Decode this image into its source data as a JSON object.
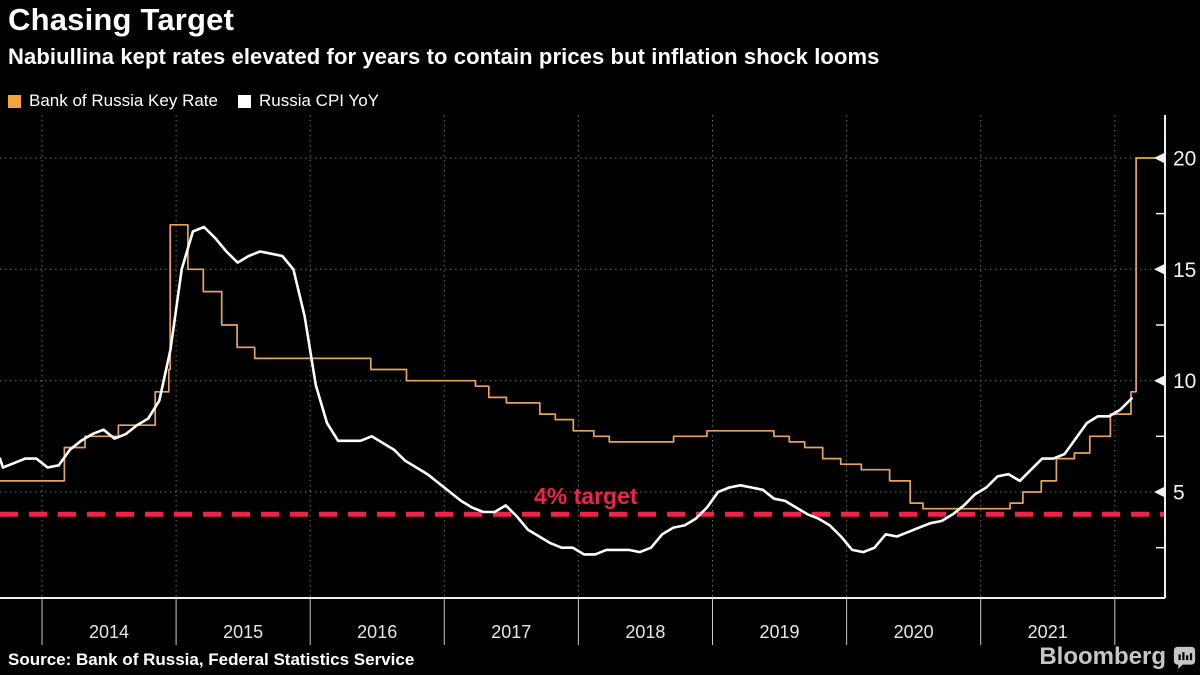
{
  "header": {
    "title": "Chasing Target",
    "subtitle": "Nabiullina kept rates elevated for years to contain prices but inflation shock looms"
  },
  "legend": [
    {
      "label": "Bank of Russia Key Rate",
      "color": "#f3a43e"
    },
    {
      "label": "Russia CPI YoY",
      "color": "#ffffff"
    }
  ],
  "footer": {
    "source": "Source: Bank of Russia, Federal Statistics Service",
    "brand": "Bloomberg"
  },
  "chart_data": {
    "type": "line",
    "title": "Chasing Target",
    "xlabel": "",
    "ylabel": "",
    "grid": "dotted",
    "legend_position": "top-left",
    "xlim": [
      2013.6868,
      2022.3744
    ],
    "ylim": [
      0.24,
      21.93
    ],
    "x_boundaries": [
      2014,
      2015,
      2016,
      2017,
      2018,
      2019,
      2020,
      2021,
      2022
    ],
    "x_tick_labels": [
      "2014",
      "2015",
      "2016",
      "2017",
      "2018",
      "2019",
      "2020",
      "2021"
    ],
    "y_ticks_major": [
      5,
      10,
      15,
      20
    ],
    "y_ticks_minor": [
      2.5,
      7.5,
      12.5,
      17.5
    ],
    "target_line": {
      "value": 4,
      "label": "4% target",
      "color": "#ed2449"
    },
    "series": [
      {
        "name": "Bank of Russia Key Rate",
        "type": "step",
        "color": "#e9a45b",
        "width": 1.7,
        "extend_to_right": true,
        "points": [
          [
            "2013-08",
            5.5
          ],
          [
            "2014-03-03",
            7.0
          ],
          [
            "2014-04-28",
            7.5
          ],
          [
            "2014-07-28",
            8.0
          ],
          [
            "2014-11-05",
            9.5
          ],
          [
            "2014-12-12",
            10.5
          ],
          [
            "2014-12-16",
            17.0
          ],
          [
            "2015-02-02",
            15.0
          ],
          [
            "2015-03-16",
            14.0
          ],
          [
            "2015-05-05",
            12.5
          ],
          [
            "2015-06-16",
            11.5
          ],
          [
            "2015-08-03",
            11.0
          ],
          [
            "2016-06-14",
            10.5
          ],
          [
            "2016-09-19",
            10.0
          ],
          [
            "2017-03-27",
            9.75
          ],
          [
            "2017-05-02",
            9.25
          ],
          [
            "2017-06-19",
            9.0
          ],
          [
            "2017-09-18",
            8.5
          ],
          [
            "2017-10-30",
            8.25
          ],
          [
            "2017-12-18",
            7.75
          ],
          [
            "2018-02-12",
            7.5
          ],
          [
            "2018-03-26",
            7.25
          ],
          [
            "2018-09-17",
            7.5
          ],
          [
            "2018-12-17",
            7.75
          ],
          [
            "2019-06-17",
            7.5
          ],
          [
            "2019-07-29",
            7.25
          ],
          [
            "2019-09-09",
            7.0
          ],
          [
            "2019-10-28",
            6.5
          ],
          [
            "2019-12-16",
            6.25
          ],
          [
            "2020-02-10",
            6.0
          ],
          [
            "2020-04-27",
            5.5
          ],
          [
            "2020-06-22",
            4.5
          ],
          [
            "2020-07-27",
            4.25
          ],
          [
            "2021-03-22",
            4.5
          ],
          [
            "2021-04-26",
            5.0
          ],
          [
            "2021-06-15",
            5.5
          ],
          [
            "2021-07-26",
            6.5
          ],
          [
            "2021-09-13",
            6.75
          ],
          [
            "2021-10-25",
            7.5
          ],
          [
            "2021-12-20",
            8.5
          ],
          [
            "2022-02-14",
            9.5
          ],
          [
            "2022-02-28",
            20.0
          ]
        ]
      },
      {
        "name": "Russia CPI YoY",
        "type": "line",
        "color": "#ffffff",
        "width": 2.6,
        "extend_to_right": false,
        "points": [
          [
            "2013-08",
            6.5
          ],
          [
            "2013-09",
            6.1
          ],
          [
            "2013-10",
            6.3
          ],
          [
            "2013-11",
            6.5
          ],
          [
            "2013-12",
            6.5
          ],
          [
            "2014-01",
            6.1
          ],
          [
            "2014-02",
            6.2
          ],
          [
            "2014-03",
            6.9
          ],
          [
            "2014-04",
            7.3
          ],
          [
            "2014-05",
            7.6
          ],
          [
            "2014-06",
            7.8
          ],
          [
            "2014-07",
            7.4
          ],
          [
            "2014-08",
            7.6
          ],
          [
            "2014-09",
            8.0
          ],
          [
            "2014-10",
            8.3
          ],
          [
            "2014-11",
            9.1
          ],
          [
            "2014-12",
            11.4
          ],
          [
            "2015-01",
            15.0
          ],
          [
            "2015-02",
            16.7
          ],
          [
            "2015-03",
            16.9
          ],
          [
            "2015-04",
            16.4
          ],
          [
            "2015-05",
            15.8
          ],
          [
            "2015-06",
            15.3
          ],
          [
            "2015-07",
            15.6
          ],
          [
            "2015-08",
            15.8
          ],
          [
            "2015-09",
            15.7
          ],
          [
            "2015-10",
            15.6
          ],
          [
            "2015-11",
            15.0
          ],
          [
            "2015-12",
            12.9
          ],
          [
            "2016-01",
            9.8
          ],
          [
            "2016-02",
            8.1
          ],
          [
            "2016-03",
            7.3
          ],
          [
            "2016-04",
            7.3
          ],
          [
            "2016-05",
            7.3
          ],
          [
            "2016-06",
            7.5
          ],
          [
            "2016-07",
            7.2
          ],
          [
            "2016-08",
            6.9
          ],
          [
            "2016-09",
            6.4
          ],
          [
            "2016-10",
            6.1
          ],
          [
            "2016-11",
            5.8
          ],
          [
            "2016-12",
            5.4
          ],
          [
            "2017-01",
            5.0
          ],
          [
            "2017-02",
            4.6
          ],
          [
            "2017-03",
            4.3
          ],
          [
            "2017-04",
            4.1
          ],
          [
            "2017-05",
            4.1
          ],
          [
            "2017-06",
            4.4
          ],
          [
            "2017-07",
            3.9
          ],
          [
            "2017-08",
            3.3
          ],
          [
            "2017-09",
            3.0
          ],
          [
            "2017-10",
            2.7
          ],
          [
            "2017-11",
            2.5
          ],
          [
            "2017-12",
            2.5
          ],
          [
            "2018-01",
            2.2
          ],
          [
            "2018-02",
            2.2
          ],
          [
            "2018-03",
            2.4
          ],
          [
            "2018-04",
            2.4
          ],
          [
            "2018-05",
            2.4
          ],
          [
            "2018-06",
            2.3
          ],
          [
            "2018-07",
            2.5
          ],
          [
            "2018-08",
            3.1
          ],
          [
            "2018-09",
            3.4
          ],
          [
            "2018-10",
            3.5
          ],
          [
            "2018-11",
            3.8
          ],
          [
            "2018-12",
            4.3
          ],
          [
            "2019-01",
            5.0
          ],
          [
            "2019-02",
            5.2
          ],
          [
            "2019-03",
            5.3
          ],
          [
            "2019-04",
            5.2
          ],
          [
            "2019-05",
            5.1
          ],
          [
            "2019-06",
            4.7
          ],
          [
            "2019-07",
            4.6
          ],
          [
            "2019-08",
            4.3
          ],
          [
            "2019-09",
            4.0
          ],
          [
            "2019-10",
            3.8
          ],
          [
            "2019-11",
            3.5
          ],
          [
            "2019-12",
            3.0
          ],
          [
            "2020-01",
            2.4
          ],
          [
            "2020-02",
            2.3
          ],
          [
            "2020-03",
            2.5
          ],
          [
            "2020-04",
            3.1
          ],
          [
            "2020-05",
            3.0
          ],
          [
            "2020-06",
            3.2
          ],
          [
            "2020-07",
            3.4
          ],
          [
            "2020-08",
            3.6
          ],
          [
            "2020-09",
            3.7
          ],
          [
            "2020-10",
            4.0
          ],
          [
            "2020-11",
            4.4
          ],
          [
            "2020-12",
            4.9
          ],
          [
            "2021-01",
            5.2
          ],
          [
            "2021-02",
            5.7
          ],
          [
            "2021-03",
            5.8
          ],
          [
            "2021-04",
            5.5
          ],
          [
            "2021-05",
            6.0
          ],
          [
            "2021-06",
            6.5
          ],
          [
            "2021-07",
            6.5
          ],
          [
            "2021-08",
            6.7
          ],
          [
            "2021-09",
            7.4
          ],
          [
            "2021-10",
            8.1
          ],
          [
            "2021-11",
            8.4
          ],
          [
            "2021-12",
            8.4
          ],
          [
            "2022-01",
            8.7
          ],
          [
            "2022-02",
            9.2
          ]
        ]
      }
    ]
  }
}
